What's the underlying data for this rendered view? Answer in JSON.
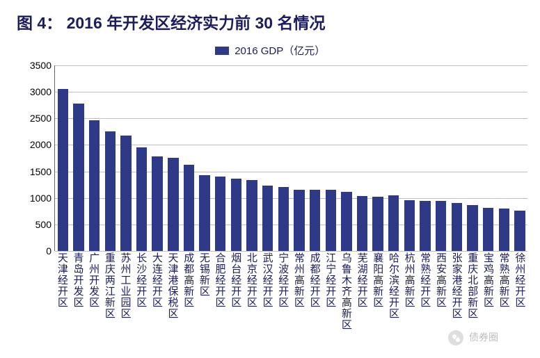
{
  "title": "图 4：  2016 年开发区经济实力前 30 名情况",
  "title_color": "#1c1c5e",
  "legend": {
    "label": "2016 GDP（亿元）",
    "color": "#2e3a87",
    "text_color": "#1c1c5e"
  },
  "chart": {
    "type": "bar",
    "ylim": [
      0,
      3500
    ],
    "ytick_step": 500,
    "yticks": [
      0,
      500,
      1000,
      1500,
      2000,
      2500,
      3000,
      3500
    ],
    "grid_color": "#bfbfbf",
    "axis_color": "#666666",
    "tick_font_size": 14,
    "xlabel_font_size": 15,
    "xlabel_color": "#1c1c5e",
    "bar_color": "#2e3a87",
    "bar_width_ratio": 0.68,
    "background_color": "#ffffff",
    "categories": [
      "天津经开区",
      "青岛开发区",
      "广州开发区",
      "重庆两江新区",
      "苏州工业园区",
      "长沙经开区",
      "大连经开区",
      "天津港保税区",
      "成都高新区",
      "无锡新区",
      "合肥经开区",
      "烟台经开区",
      "北京经开区",
      "武汉经开区",
      "宁波经开区",
      "常州高新区",
      "成都经开区",
      "江宁经开区",
      "乌鲁木齐高新区",
      "芜湖经开区",
      "襄阳高新区",
      "哈尔滨经开区",
      "杭州高新区",
      "常熟经开区",
      "西安高新区",
      "张家港经开区",
      "重庆北部新区",
      "宝鸡高新区",
      "常熟高新区",
      "徐州经开区"
    ],
    "values": [
      3050,
      2780,
      2460,
      2260,
      2170,
      1950,
      1780,
      1760,
      1620,
      1430,
      1400,
      1370,
      1340,
      1230,
      1200,
      1160,
      1160,
      1150,
      1120,
      1030,
      1020,
      1050,
      960,
      940,
      940,
      910,
      870,
      810,
      800,
      760
    ]
  },
  "watermark": "债券圈"
}
